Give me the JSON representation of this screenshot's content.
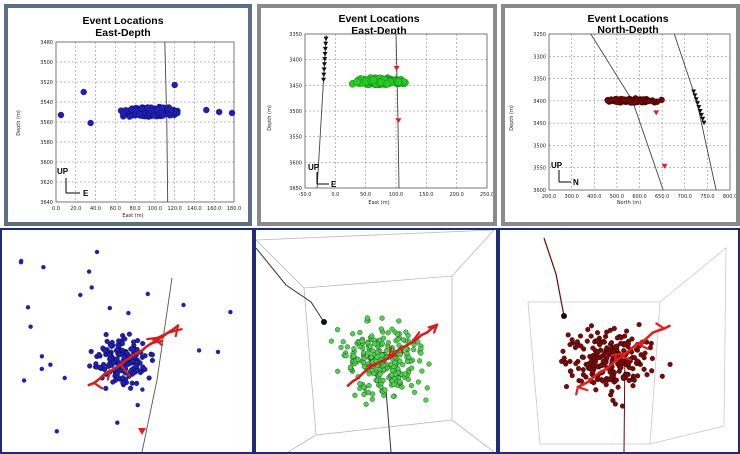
{
  "chart_data": [
    {
      "type": "scatter",
      "title": "Event Locations",
      "subtitle": "East-Depth",
      "xlabel": "East (m)",
      "ylabel": "Depth (m)",
      "xlim": [
        0,
        180
      ],
      "ylim": [
        3640,
        3480
      ],
      "xticks": [
        "0.0",
        "20.0",
        "40.0",
        "60.0",
        "80.0",
        "100.0",
        "120.0",
        "140.0",
        "160.0",
        "180.0"
      ],
      "yticks": [
        "3480",
        "3500",
        "3520",
        "3540",
        "3560",
        "3580",
        "3600",
        "3620",
        "3640"
      ],
      "grid": true,
      "compass": {
        "up": "UP",
        "right": "E"
      },
      "colors": {
        "events": "#1f1fb4",
        "frame": "#5a6e86"
      },
      "cluster": {
        "x_center": 95,
        "x_spread": 35,
        "y_center": 3550,
        "y_spread": 6,
        "count": 260
      },
      "outliers": [
        [
          5,
          3553
        ],
        [
          28,
          3530
        ],
        [
          120,
          3523
        ],
        [
          152,
          3548
        ],
        [
          165,
          3550
        ],
        [
          178,
          3551
        ],
        [
          35,
          3561
        ]
      ],
      "wells": [
        {
          "kind": "line",
          "points": [
            [
              110,
              3480
            ],
            [
              112,
              3560
            ],
            [
              113,
              3640
            ]
          ]
        }
      ]
    },
    {
      "type": "scatter",
      "title": "Event Locations",
      "subtitle": "East-Depth",
      "xlabel": "East (m)",
      "ylabel": "Depth (m)",
      "xlim": [
        -50,
        250
      ],
      "ylim": [
        3650,
        3350
      ],
      "xticks": [
        "-50.0",
        "0.0",
        "50.0",
        "100.0",
        "150.0",
        "200.0",
        "250.0"
      ],
      "yticks": [
        "3350",
        "3400",
        "3450",
        "3500",
        "3550",
        "3600",
        "3650"
      ],
      "grid": true,
      "compass": {
        "up": "UP",
        "right": "E"
      },
      "colors": {
        "events": "#22cc22",
        "frame": "#8a8a8a"
      },
      "cluster": {
        "x_center": 75,
        "x_spread": 60,
        "y_center": 3443,
        "y_spread": 8,
        "count": 180
      },
      "wells": [
        {
          "kind": "triangles",
          "points": [
            [
              -15,
              3352
            ],
            [
              -20,
              3450
            ],
            [
              -30,
              3650
            ]
          ],
          "marker_range": [
            3360,
            3440
          ]
        },
        {
          "kind": "line",
          "points": [
            [
              100,
              3350
            ],
            [
              103,
              3500
            ],
            [
              105,
              3650
            ]
          ],
          "markers": [
            [
              101,
              3418
            ],
            [
              104,
              3520
            ]
          ]
        }
      ]
    },
    {
      "type": "scatter",
      "title": "Event Locations",
      "subtitle": "North-Depth",
      "xlabel": "North (m)",
      "ylabel": "Depth (m)",
      "xlim": [
        200,
        850
      ],
      "ylim": [
        3600,
        3250
      ],
      "xticks": [
        "200.0",
        "300.0",
        "400.0",
        "500.0",
        "600.0",
        "650.0",
        "700.0",
        "750.0",
        "800.0"
      ],
      "yticks": [
        "3250",
        "3300",
        "3350",
        "3400",
        "3450",
        "3500",
        "3550",
        "3600"
      ],
      "grid": true,
      "compass": {
        "up": "UP",
        "right": "N"
      },
      "colors": {
        "events": "#6b0808",
        "frame": "#8a8a8a"
      },
      "cluster": {
        "x_center": 500,
        "x_spread": 120,
        "y_center": 3400,
        "y_spread": 6,
        "count": 150
      },
      "wells": [
        {
          "kind": "line",
          "points": [
            [
              350,
              3250
            ],
            [
              500,
              3400
            ],
            [
              610,
              3600
            ]
          ],
          "markers": [
            [
              585,
              3428
            ],
            [
              615,
              3548
            ]
          ]
        },
        {
          "kind": "triangles",
          "points": [
            [
              650,
              3250
            ],
            [
              730,
              3400
            ],
            [
              800,
              3600
            ]
          ],
          "marker_range": [
            3380,
            3450
          ]
        }
      ]
    }
  ],
  "views3d": [
    {
      "style": "plain",
      "colors": {
        "events": "#1f1fb4",
        "frac": "#d22020"
      },
      "count": 170,
      "outliers": 25
    },
    {
      "style": "box",
      "colors": {
        "events": "#4ed24e",
        "frac": "#d22020",
        "box": "#b8b8b8"
      },
      "count": 260
    },
    {
      "style": "box",
      "colors": {
        "events": "#7a0a0a",
        "frac": "#e02020",
        "box": "#c8c8c8"
      },
      "count": 230
    }
  ]
}
